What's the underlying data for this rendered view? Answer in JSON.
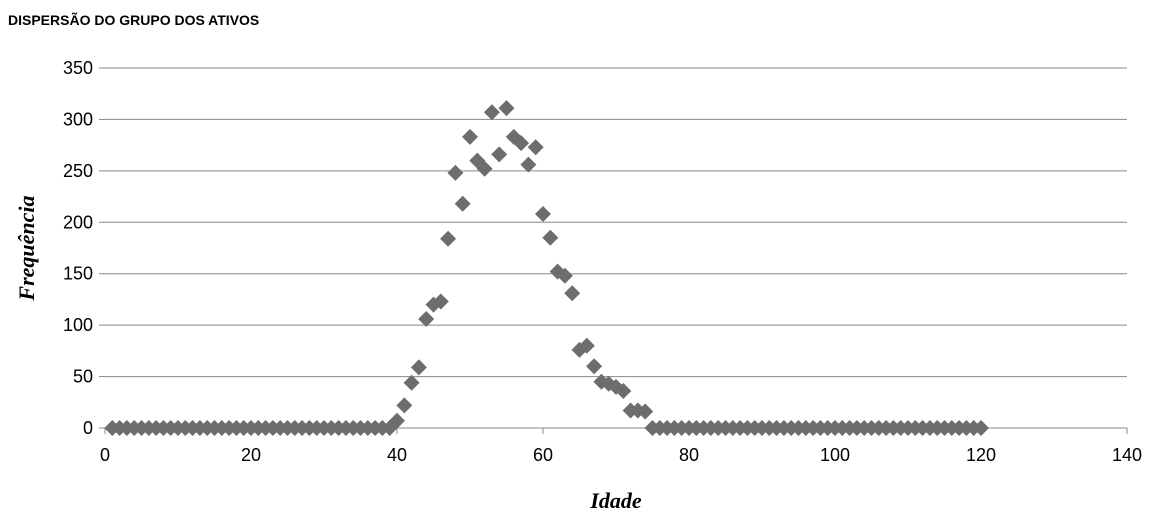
{
  "chart_data": {
    "type": "scatter",
    "title": "DISPERSÃO DO GRUPO DOS ATIVOS",
    "xlabel": "Idade",
    "ylabel": "Frequência",
    "xlim": [
      0,
      140
    ],
    "ylim": [
      0,
      350
    ],
    "xticks": [
      0,
      20,
      40,
      60,
      80,
      100,
      120,
      140
    ],
    "yticks": [
      0,
      50,
      100,
      150,
      200,
      250,
      300,
      350
    ],
    "grid": "horizontal",
    "legend": "none",
    "marker": "diamond",
    "marker_color": "#6d6d6d",
    "x": [
      1,
      2,
      3,
      4,
      5,
      6,
      7,
      8,
      9,
      10,
      11,
      12,
      13,
      14,
      15,
      16,
      17,
      18,
      19,
      20,
      21,
      22,
      23,
      24,
      25,
      26,
      27,
      28,
      29,
      30,
      31,
      32,
      33,
      34,
      35,
      36,
      37,
      38,
      39,
      40,
      41,
      42,
      43,
      44,
      45,
      46,
      47,
      48,
      49,
      50,
      51,
      52,
      53,
      54,
      55,
      56,
      57,
      58,
      59,
      60,
      61,
      62,
      63,
      64,
      65,
      66,
      67,
      68,
      69,
      70,
      71,
      72,
      73,
      74,
      75,
      76,
      77,
      78,
      79,
      80,
      81,
      82,
      83,
      84,
      85,
      86,
      87,
      88,
      89,
      90,
      91,
      92,
      93,
      94,
      95,
      96,
      97,
      98,
      99,
      100,
      101,
      102,
      103,
      104,
      105,
      106,
      107,
      108,
      109,
      110,
      111,
      112,
      113,
      114,
      115,
      116,
      117,
      118,
      119,
      120
    ],
    "y": [
      0,
      0,
      0,
      0,
      0,
      0,
      0,
      0,
      0,
      0,
      0,
      0,
      0,
      0,
      0,
      0,
      0,
      0,
      0,
      0,
      0,
      0,
      0,
      0,
      0,
      0,
      0,
      0,
      0,
      0,
      0,
      0,
      0,
      0,
      0,
      0,
      0,
      0,
      0,
      7,
      22,
      44,
      59,
      106,
      120,
      123,
      184,
      248,
      218,
      283,
      260,
      252,
      307,
      266,
      311,
      283,
      277,
      256,
      273,
      208,
      185,
      152,
      148,
      131,
      76,
      80,
      60,
      45,
      43,
      40,
      36,
      17,
      17,
      16,
      0,
      0,
      0,
      0,
      0,
      0,
      0,
      0,
      0,
      0,
      0,
      0,
      0,
      0,
      0,
      0,
      0,
      0,
      0,
      0,
      0,
      0,
      0,
      0,
      0,
      0,
      0,
      0,
      0,
      0,
      0,
      0,
      0,
      0,
      0,
      0,
      0,
      0,
      0,
      0,
      0,
      0,
      0,
      0,
      0,
      0
    ]
  }
}
